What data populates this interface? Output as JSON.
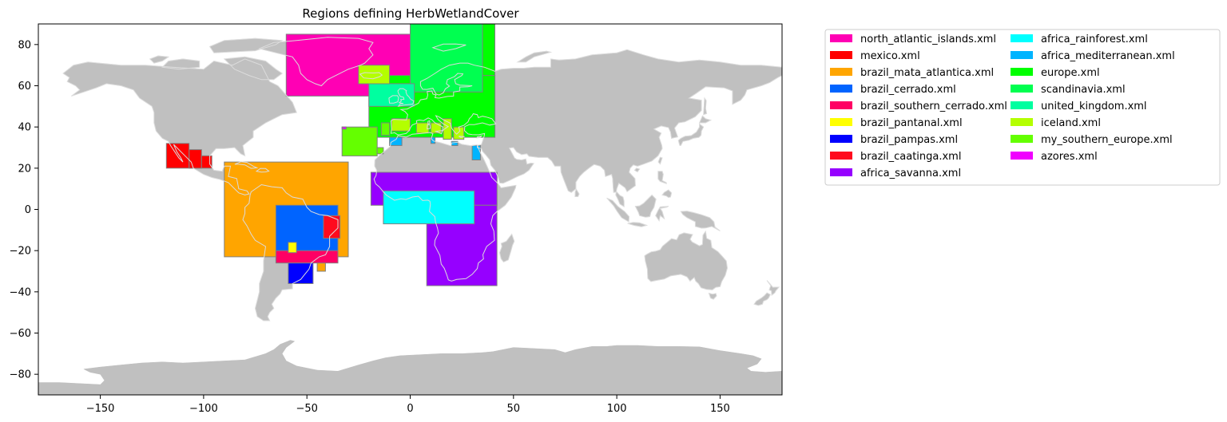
{
  "chart_data": {
    "type": "map",
    "title": "Regions defining HerbWetlandCover",
    "xlabel": "",
    "ylabel": "",
    "xlim": [
      -180,
      180
    ],
    "ylim": [
      -90,
      90
    ],
    "xticks": [
      -150,
      -100,
      -50,
      0,
      50,
      100,
      150
    ],
    "yticks": [
      -80,
      -60,
      -40,
      -20,
      0,
      20,
      40,
      60,
      80
    ],
    "land_color": "#c0c0c0",
    "region_edge_color": "#808080",
    "grid": false,
    "legend_placement": "outside-right-top",
    "legend_columns": 2,
    "regions": [
      {
        "name": "north_atlantic_islands.xml",
        "color": "#ff00b4",
        "boxes": [
          {
            "lon": [
              -60,
              0
            ],
            "lat": [
              55,
              85
            ]
          }
        ]
      },
      {
        "name": "mexico.xml",
        "color": "#ff0000",
        "boxes": [
          {
            "lon": [
              -118,
              -107
            ],
            "lat": [
              20,
              32
            ]
          },
          {
            "lon": [
              -107,
              -101
            ],
            "lat": [
              20,
              29
            ]
          },
          {
            "lon": [
              -101,
              -96
            ],
            "lat": [
              20,
              26
            ]
          }
        ]
      },
      {
        "name": "brazil_mata_atlantica.xml",
        "color": "#ffa500",
        "boxes": [
          {
            "lon": [
              -90,
              -30
            ],
            "lat": [
              -23,
              23
            ]
          },
          {
            "lon": [
              -45,
              -41
            ],
            "lat": [
              -30,
              -23
            ]
          }
        ]
      },
      {
        "name": "brazil_cerrado.xml",
        "color": "#0064ff",
        "boxes": [
          {
            "lon": [
              -65,
              -35
            ],
            "lat": [
              -25,
              2
            ]
          }
        ]
      },
      {
        "name": "brazil_southern_cerrado.xml",
        "color": "#ff0064",
        "boxes": [
          {
            "lon": [
              -65,
              -35
            ],
            "lat": [
              -26,
              -20
            ]
          }
        ]
      },
      {
        "name": "brazil_pantanal.xml",
        "color": "#ffff00",
        "boxes": [
          {
            "lon": [
              -59,
              -55
            ],
            "lat": [
              -21,
              -16
            ]
          }
        ]
      },
      {
        "name": "brazil_pampas.xml",
        "color": "#0000ff",
        "boxes": [
          {
            "lon": [
              -59,
              -47
            ],
            "lat": [
              -36,
              -26
            ]
          }
        ]
      },
      {
        "name": "brazil_caatinga.xml",
        "color": "#ff0a1e",
        "boxes": [
          {
            "lon": [
              -42,
              -34
            ],
            "lat": [
              -14,
              -3
            ]
          }
        ]
      },
      {
        "name": "africa_savanna.xml",
        "color": "#9600ff",
        "boxes": [
          {
            "lon": [
              -19,
              42
            ],
            "lat": [
              2,
              18
            ]
          },
          {
            "lon": [
              8,
              42
            ],
            "lat": [
              -37,
              2
            ]
          }
        ]
      },
      {
        "name": "africa_rainforest.xml",
        "color": "#00ffff",
        "boxes": [
          {
            "lon": [
              -13,
              31
            ],
            "lat": [
              -7,
              9
            ]
          }
        ]
      },
      {
        "name": "africa_mediterranean.xml",
        "color": "#00b4ff",
        "boxes": [
          {
            "lon": [
              -10,
              -4
            ],
            "lat": [
              31,
              36
            ]
          },
          {
            "lon": [
              10,
              12
            ],
            "lat": [
              32,
              37
            ]
          },
          {
            "lon": [
              20,
              23
            ],
            "lat": [
              31,
              33
            ]
          },
          {
            "lon": [
              30,
              34
            ],
            "lat": [
              24,
              31
            ]
          }
        ]
      },
      {
        "name": "europe.xml",
        "color": "#00ff00",
        "boxes": [
          {
            "lon": [
              -20,
              41
            ],
            "lat": [
              35,
              65
            ]
          },
          {
            "lon": [
              0,
              41
            ],
            "lat": [
              65,
              90
            ]
          }
        ]
      },
      {
        "name": "scandinavia.xml",
        "color": "#00ff50",
        "boxes": [
          {
            "lon": [
              0,
              35
            ],
            "lat": [
              57,
              90
            ]
          }
        ]
      },
      {
        "name": "united_kingdom.xml",
        "color": "#00ffa0",
        "boxes": [
          {
            "lon": [
              -20,
              2
            ],
            "lat": [
              50,
              61
            ]
          }
        ]
      },
      {
        "name": "iceland.xml",
        "color": "#b4ff00",
        "boxes": [
          {
            "lon": [
              -25,
              -10
            ],
            "lat": [
              61,
              70
            ]
          },
          {
            "lon": [
              -9,
              0
            ],
            "lat": [
              38,
              44
            ]
          },
          {
            "lon": [
              3,
              9
            ],
            "lat": [
              37,
              42
            ]
          },
          {
            "lon": [
              10,
              15
            ],
            "lat": [
              37,
              42
            ]
          },
          {
            "lon": [
              16,
              20
            ],
            "lat": [
              34,
              44
            ]
          },
          {
            "lon": [
              21,
              26
            ],
            "lat": [
              34,
              40
            ]
          }
        ]
      },
      {
        "name": "my_southern_europe.xml",
        "color": "#64ff00",
        "boxes": [
          {
            "lon": [
              -33,
              -16
            ],
            "lat": [
              26,
              40
            ]
          },
          {
            "lon": [
              -14,
              -10
            ],
            "lat": [
              36,
              42
            ]
          },
          {
            "lon": [
              -16,
              -13
            ],
            "lat": [
              27,
              30
            ]
          }
        ]
      },
      {
        "name": "azores.xml",
        "color": "#f000ff",
        "boxes": [
          {
            "lon": [
              -33,
              -31
            ],
            "lat": [
              39,
              40
            ]
          }
        ]
      }
    ]
  }
}
